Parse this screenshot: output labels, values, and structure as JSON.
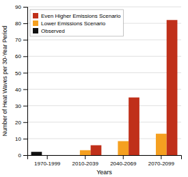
{
  "chart_data": {
    "type": "bar",
    "xlabel": "Years",
    "ylabel": "Number of Heat Waves per 30-Year Period",
    "categories": [
      "1970-1999",
      "2010-2039",
      "2040-2069",
      "2070-2099"
    ],
    "series": [
      {
        "name": "Observed",
        "color": "#111111",
        "values": [
          2,
          0,
          0,
          0
        ]
      },
      {
        "name": "Lower Emissions Scenario",
        "color": "#f5a020",
        "values": [
          0,
          3,
          8.5,
          13
        ]
      },
      {
        "name": "Even Higher Emissions Scenario",
        "color": "#c0301a",
        "values": [
          0,
          6,
          35,
          82
        ]
      }
    ],
    "ylim": [
      0,
      90
    ],
    "yticks": [
      0,
      10,
      20,
      30,
      40,
      50,
      60,
      70,
      80,
      90
    ],
    "grid": true,
    "legend": "upper-left"
  }
}
